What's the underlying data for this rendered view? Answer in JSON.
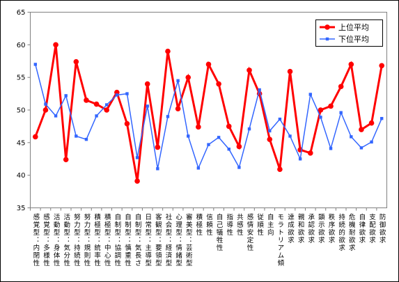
{
  "chart_data": {
    "type": "line",
    "categories": [
      "感覚型：内閉性",
      "感覚型：多様性",
      "活動型：身体性",
      "活動型：気分性",
      "努力型：持続性",
      "努力型：規則性",
      "積極型：統率性",
      "積極型：中心性",
      "自制型：協調性",
      "自制型：慎重性",
      "自制型：気長さ",
      "日常型：主導型",
      "客観型：要領型",
      "社会型：経済型",
      "心理型：情緒型",
      "審美型：芸術型",
      "積極性",
      "信頼性",
      "自己犠牲性",
      "指導性",
      "共感性",
      "感情安定性",
      "従順性",
      "自主向",
      "モラトリアム傾",
      "達成欲求",
      "親和欲求",
      "承認欲求",
      "顕示欲求",
      "秩序欲求",
      "持続的欲求",
      "危機耐欲求",
      "自律欲求",
      "支配欲求",
      "防御欲求"
    ],
    "series": [
      {
        "name": "上位平均",
        "color": "#ff0000",
        "values": [
          45.9,
          50,
          60,
          42.4,
          57.4,
          51.5,
          50.9,
          50,
          52.7,
          47.9,
          39.1,
          54,
          44.3,
          59,
          50.2,
          55,
          47.4,
          57,
          54,
          47.5,
          44.4,
          56.1,
          52.5,
          45.5,
          40.9,
          55.9,
          43.9,
          43.4,
          50,
          50.6,
          53.6,
          57,
          47,
          48,
          56.8
        ]
      },
      {
        "name": "下位平均",
        "color": "#3366ff",
        "values": [
          57,
          50.9,
          49.1,
          52.2,
          46,
          45.5,
          49.1,
          50.8,
          52.3,
          52.5,
          42.7,
          50.6,
          41,
          49,
          54.5,
          46,
          41.1,
          44.7,
          45.8,
          44,
          41.2,
          47.1,
          53.1,
          46.8,
          48.6,
          46,
          42.5,
          52.4,
          48.9,
          44.1,
          49.6,
          45.9,
          44.2,
          45.1,
          48.7
        ]
      }
    ],
    "ylim": [
      35,
      65
    ],
    "yticks": [
      35,
      40,
      45,
      50,
      55,
      60,
      65
    ],
    "legend": "upper right"
  }
}
